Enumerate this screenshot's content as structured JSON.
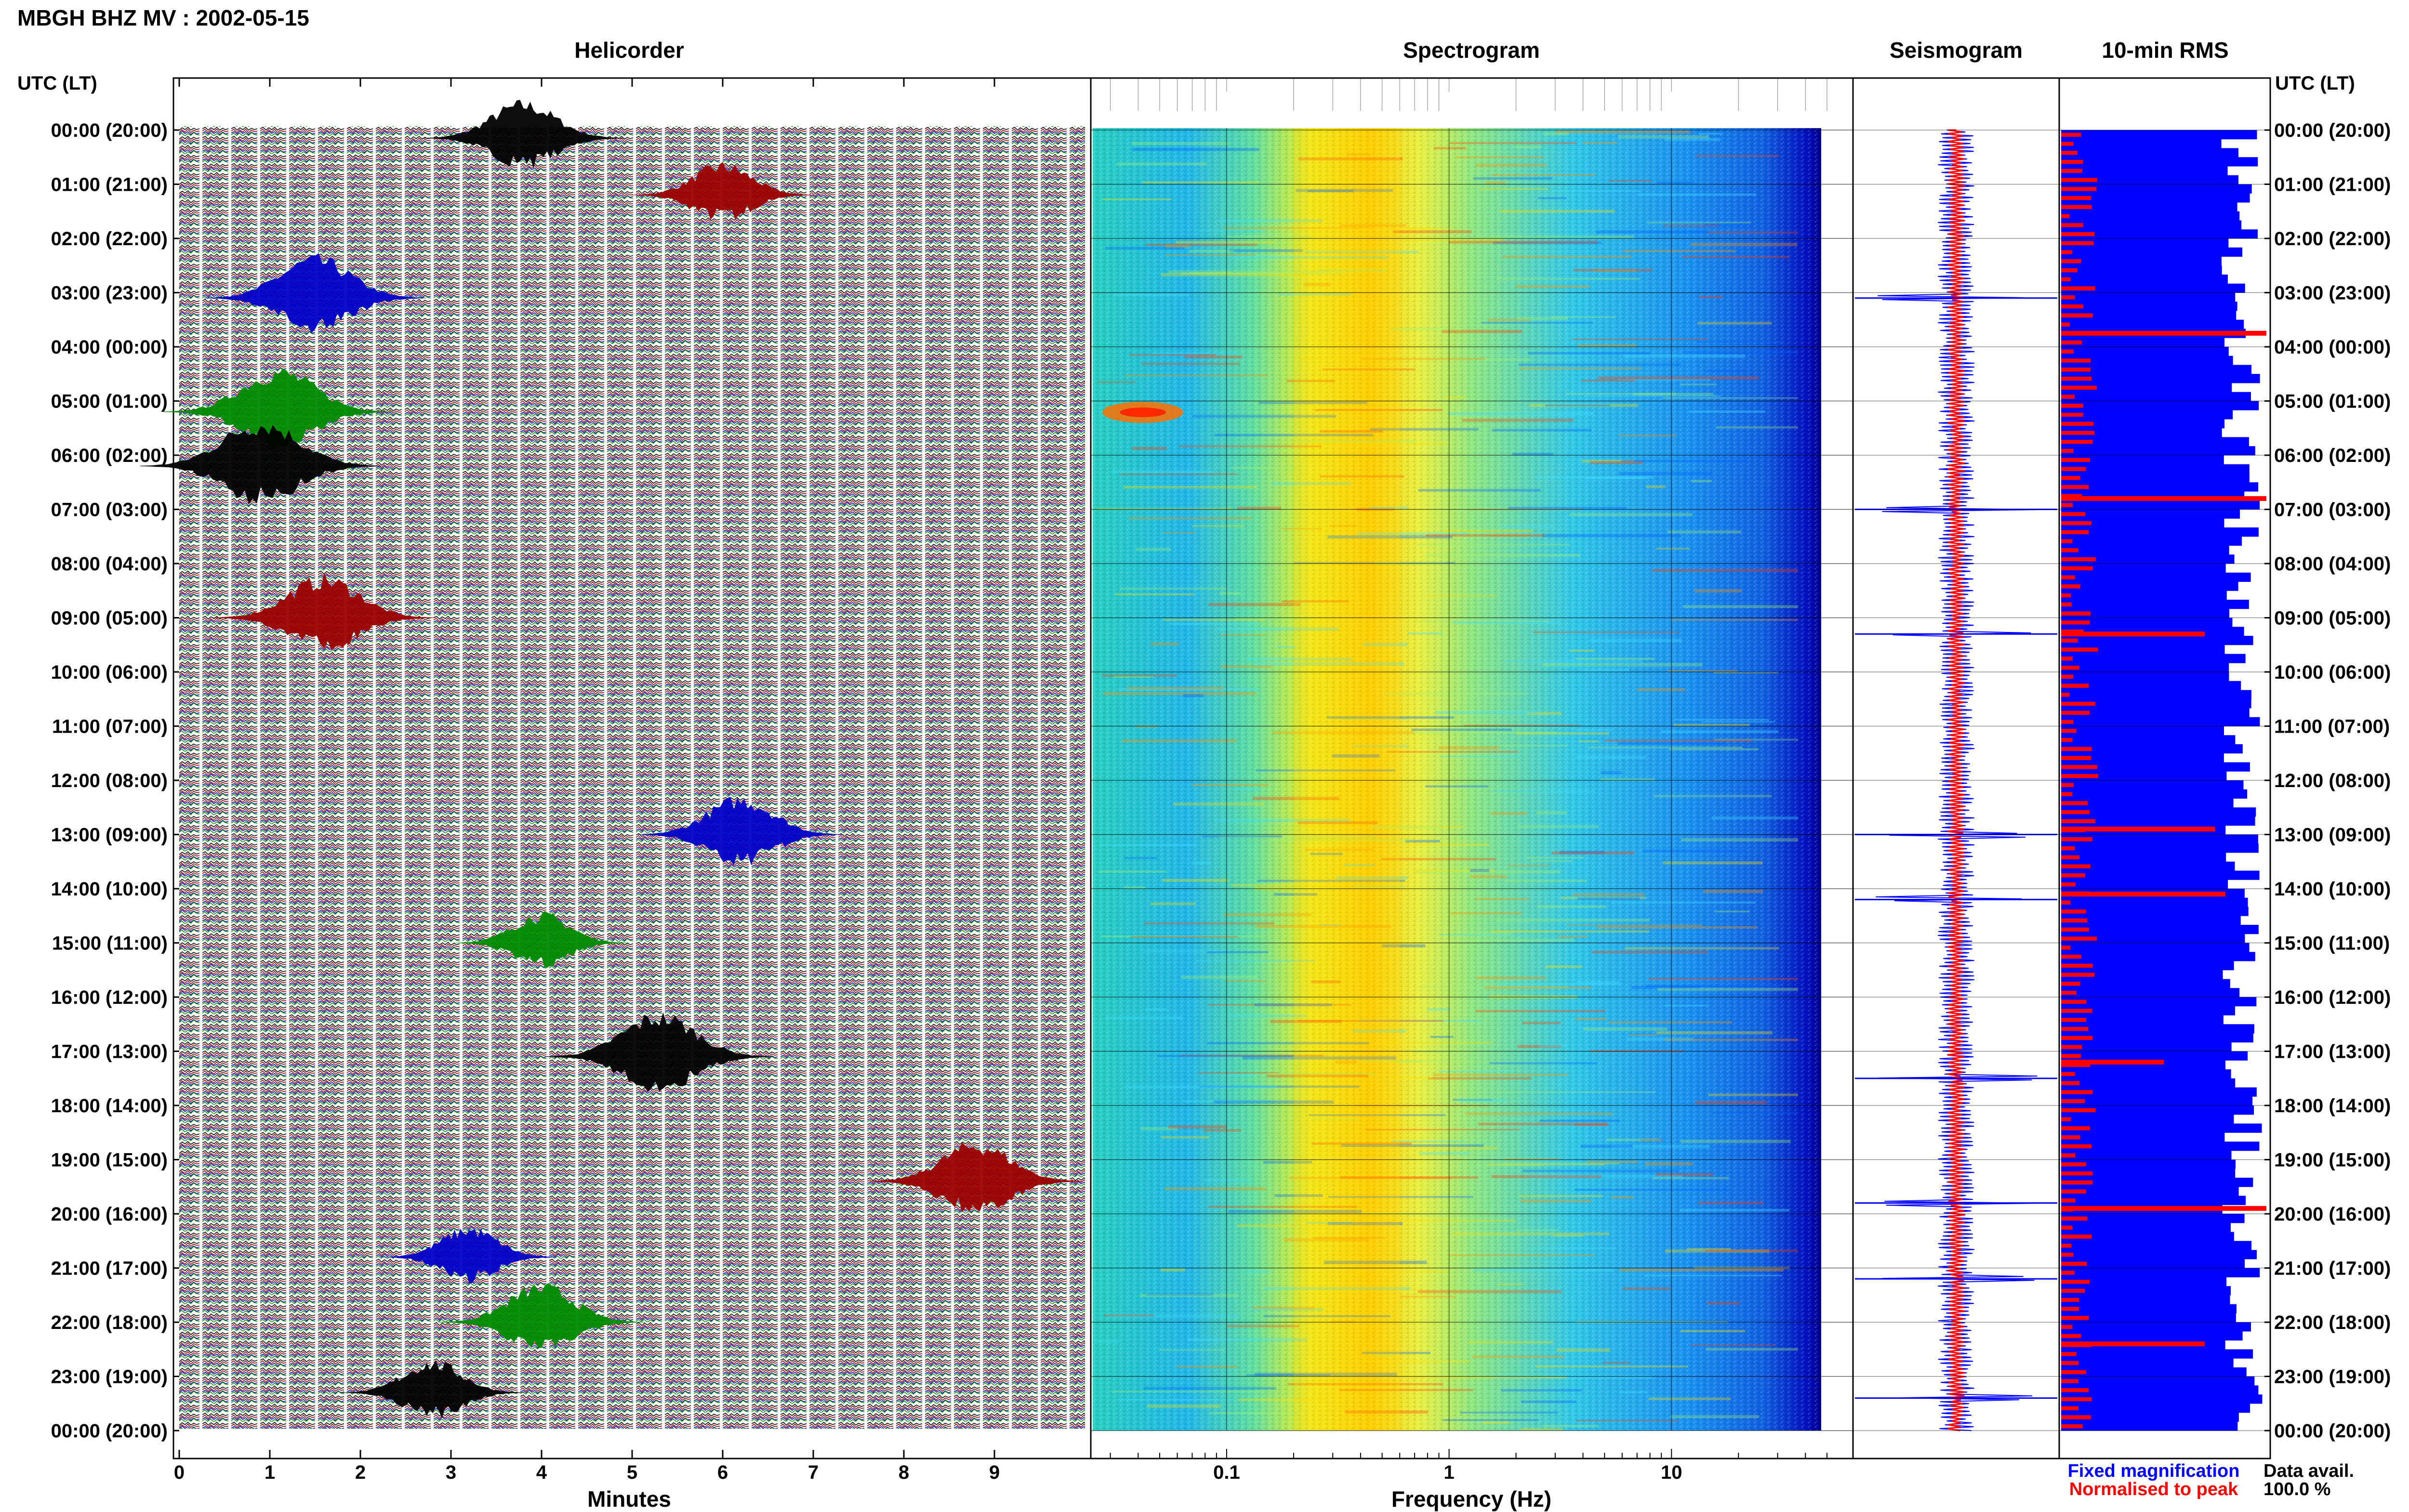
{
  "page_title": "MBGH BHZ MV : 2002-05-15",
  "panel_titles": {
    "helicorder": "Helicorder",
    "spectrogram": "Spectrogram",
    "seismogram": "Seismogram",
    "rms": "10-min RMS"
  },
  "time_axis_label": "UTC (LT)",
  "time_labels": [
    "00:00 (20:00)",
    "01:00 (21:00)",
    "02:00 (22:00)",
    "03:00 (23:00)",
    "04:00 (00:00)",
    "05:00 (01:00)",
    "06:00 (02:00)",
    "07:00 (03:00)",
    "08:00 (04:00)",
    "09:00 (05:00)",
    "10:00 (06:00)",
    "11:00 (07:00)",
    "12:00 (08:00)",
    "13:00 (09:00)",
    "14:00 (10:00)",
    "15:00 (11:00)",
    "16:00 (12:00)",
    "17:00 (13:00)",
    "18:00 (14:00)",
    "19:00 (15:00)",
    "20:00 (16:00)",
    "21:00 (17:00)",
    "22:00 (18:00)",
    "23:00 (19:00)",
    "00:00 (20:00)"
  ],
  "helicorder_axis": {
    "label": "Minutes",
    "ticks": [
      "0",
      "1",
      "2",
      "3",
      "4",
      "5",
      "6",
      "7",
      "8",
      "9"
    ]
  },
  "spectrogram_axis": {
    "label": "Frequency (Hz)",
    "ticks": [
      "0.1",
      "1",
      "10"
    ]
  },
  "legend": {
    "fixed": "Fixed magnification",
    "normalised": "Normalised to peak",
    "fixed_color": "#0000ff",
    "normalised_color": "#ff0000"
  },
  "data_availability": {
    "label": "Data avail.",
    "value": "100.0 %"
  },
  "colors": {
    "trace_cycle": [
      "#000000",
      "#9b0000",
      "#0000c8",
      "#008a00"
    ],
    "spectrogram_colormap": [
      "#00008f",
      "#0000ff",
      "#00a0ff",
      "#40e0d0",
      "#a0f070",
      "#ffff00",
      "#ff8000",
      "#ff0000"
    ],
    "rms_fixed": "#0000ff",
    "rms_normalised": "#ff0000",
    "seismogram_fixed": "#0000ff",
    "seismogram_normalised": "#ff0000"
  },
  "chart_data": [
    {
      "type": "line",
      "name": "helicorder",
      "title": "Helicorder",
      "xlabel": "Minutes",
      "xlim": [
        0,
        10
      ],
      "rows_per_hour": 6,
      "hours": 24,
      "events": [
        {
          "hour": 0.15,
          "minute": 3.8,
          "amp": 2.5
        },
        {
          "hour": 1.2,
          "minute": 6.0,
          "amp": 2.0
        },
        {
          "hour": 3.1,
          "minute": 1.5,
          "amp": 3.0
        },
        {
          "hour": 5.2,
          "minute": 1.1,
          "amp": 3.2
        },
        {
          "hour": 6.2,
          "minute": 0.9,
          "amp": 3.5
        },
        {
          "hour": 9.0,
          "minute": 1.6,
          "amp": 3.0
        },
        {
          "hour": 13.0,
          "minute": 6.2,
          "amp": 2.6
        },
        {
          "hour": 15.0,
          "minute": 4.0,
          "amp": 1.8
        },
        {
          "hour": 17.1,
          "minute": 5.3,
          "amp": 3.2
        },
        {
          "hour": 19.4,
          "minute": 8.8,
          "amp": 2.8
        },
        {
          "hour": 20.8,
          "minute": 3.2,
          "amp": 1.8
        },
        {
          "hour": 22.0,
          "minute": 4.0,
          "amp": 2.6
        },
        {
          "hour": 23.3,
          "minute": 2.8,
          "amp": 2.0
        }
      ]
    },
    {
      "type": "heatmap",
      "name": "spectrogram",
      "title": "Spectrogram",
      "xlabel": "Frequency (Hz)",
      "xscale": "log",
      "xlim": [
        0.025,
        50
      ],
      "peak_band_hz": [
        0.2,
        0.6
      ],
      "bright_feature": {
        "hour": 5.1,
        "hz": [
          0.035,
          0.06
        ]
      }
    },
    {
      "type": "line",
      "name": "seismogram",
      "title": "Seismogram",
      "spikes_hours": [
        3.1,
        7.0,
        9.3,
        13.0,
        14.2,
        17.5,
        19.8,
        21.2,
        23.4
      ]
    },
    {
      "type": "bar",
      "name": "rms",
      "title": "10-min RMS",
      "orientation": "horizontal",
      "intervals": 144,
      "normalised_peaks": [
        {
          "hour": 3.75,
          "value": 1.0
        },
        {
          "hour": 6.8,
          "value": 1.0
        },
        {
          "hour": 9.3,
          "value": 0.7
        },
        {
          "hour": 12.9,
          "value": 0.75
        },
        {
          "hour": 14.1,
          "value": 0.8
        },
        {
          "hour": 17.2,
          "value": 0.5
        },
        {
          "hour": 19.9,
          "value": 1.0
        },
        {
          "hour": 22.4,
          "value": 0.7
        }
      ]
    }
  ]
}
